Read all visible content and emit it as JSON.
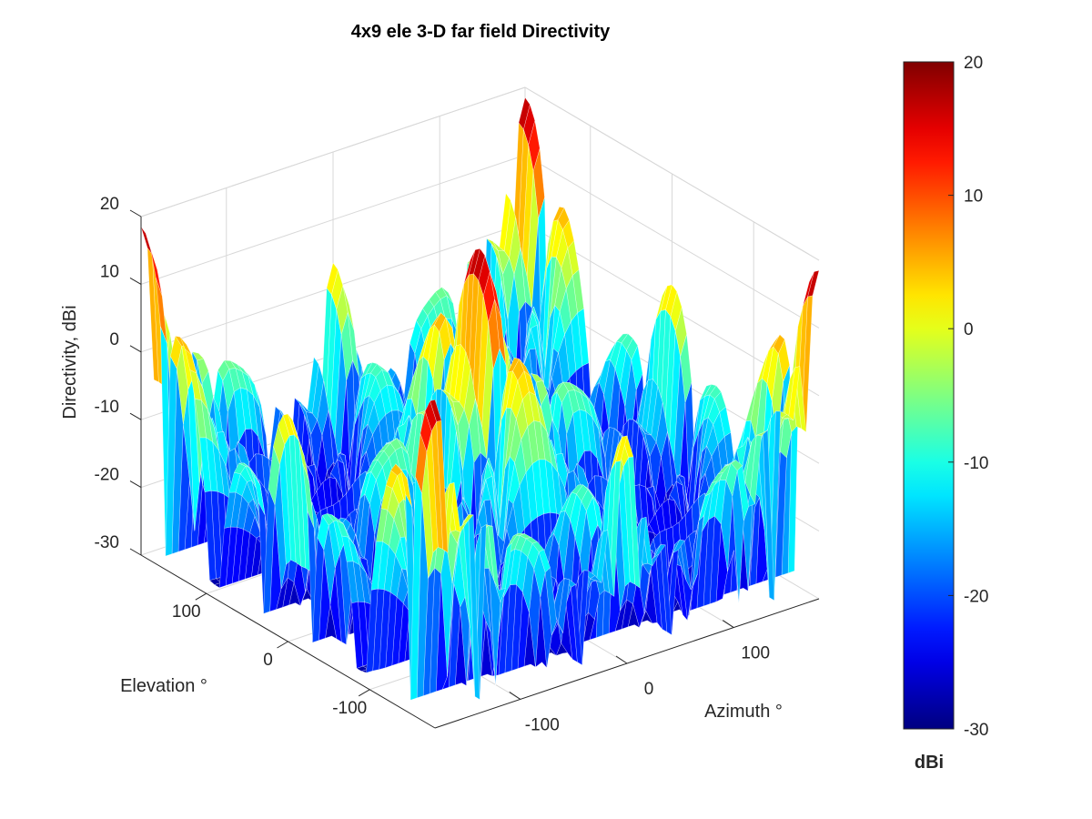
{
  "chart_data": {
    "type": "surface",
    "title": "4x9 ele 3-D far field Directivity",
    "xlabel": "Azimuth °",
    "ylabel": "Elevation °",
    "zlabel": "Directivity, dBi",
    "x_ticks": [
      "-100",
      "0",
      "100"
    ],
    "x_tick_values": [
      -100,
      0,
      100
    ],
    "y_ticks": [
      "-100",
      "0",
      "100"
    ],
    "y_tick_values": [
      -100,
      0,
      100
    ],
    "z_ticks": [
      "-30",
      "-20",
      "-10",
      "0",
      "10",
      "20"
    ],
    "z_tick_values": [
      -30,
      -20,
      -10,
      0,
      10,
      20
    ],
    "xlim": [
      -180,
      180
    ],
    "ylim": [
      -180,
      180
    ],
    "zlim": [
      -30,
      20
    ],
    "peak": {
      "azimuth": 0,
      "elevation": 0,
      "directivity": 18.5
    },
    "array": {
      "rows": 4,
      "cols": 9
    },
    "colorbar": {
      "label": "dBi",
      "ticks": [
        "20",
        "10",
        "0",
        "-10",
        "-20",
        "-30"
      ],
      "tick_values": [
        20,
        10,
        0,
        -10,
        -20,
        -30
      ],
      "range": [
        -30,
        20
      ],
      "colormap": "jet"
    }
  }
}
